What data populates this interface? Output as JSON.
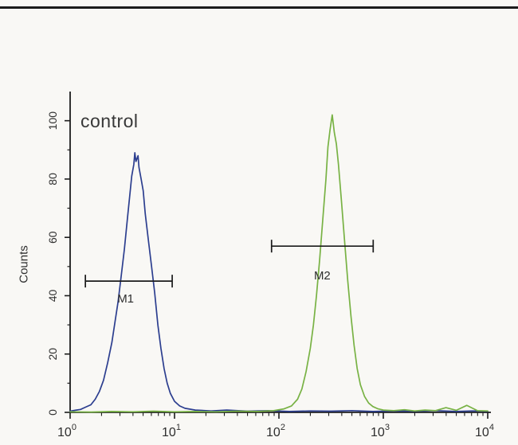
{
  "page": {
    "background": "#f9f8f5"
  },
  "chart_data": {
    "type": "line",
    "title": "control",
    "xlabel": "",
    "ylabel": "Counts",
    "x_scale": "log",
    "xlim": [
      1,
      10000
    ],
    "ylim": [
      0,
      110
    ],
    "x_tick_base": "10",
    "x_tick_exponents": [
      0,
      1,
      2,
      3,
      4
    ],
    "y_ticks": [
      0,
      20,
      40,
      60,
      80,
      100
    ],
    "y_minor_ticks": [
      10,
      30,
      50,
      70,
      90
    ],
    "grid": false,
    "legend": "none",
    "colors": {
      "axis": "#1c1c1c",
      "text": "#2e2e2e",
      "gate": "#1b1b1b"
    },
    "series": [
      {
        "name": "control-peak-blue",
        "color": "#2c3e8f",
        "points": [
          [
            1.0,
            0.4
          ],
          [
            1.12,
            0.7
          ],
          [
            1.26,
            1.0
          ],
          [
            1.41,
            1.8
          ],
          [
            1.58,
            2.6
          ],
          [
            1.74,
            4.5
          ],
          [
            1.91,
            7.2
          ],
          [
            2.09,
            11
          ],
          [
            2.29,
            17
          ],
          [
            2.51,
            24
          ],
          [
            2.69,
            31
          ],
          [
            2.88,
            38
          ],
          [
            3.09,
            47
          ],
          [
            3.31,
            56
          ],
          [
            3.55,
            67
          ],
          [
            3.72,
            74
          ],
          [
            3.89,
            81
          ],
          [
            4.07,
            85
          ],
          [
            4.17,
            89
          ],
          [
            4.27,
            86
          ],
          [
            4.47,
            88
          ],
          [
            4.57,
            84
          ],
          [
            4.79,
            80
          ],
          [
            5.01,
            76
          ],
          [
            5.25,
            68
          ],
          [
            5.62,
            59
          ],
          [
            6.03,
            50
          ],
          [
            6.46,
            41
          ],
          [
            6.92,
            30
          ],
          [
            7.41,
            22
          ],
          [
            7.94,
            15
          ],
          [
            8.51,
            10
          ],
          [
            9.12,
            6.5
          ],
          [
            10,
            3.8
          ],
          [
            11.2,
            2.2
          ],
          [
            12.6,
            1.4
          ],
          [
            15.8,
            0.8
          ],
          [
            22.4,
            0.5
          ],
          [
            31.6,
            0.8
          ],
          [
            50,
            0.4
          ],
          [
            79,
            0.6
          ],
          [
            126,
            0.3
          ],
          [
            200,
            0.5
          ],
          [
            316,
            0.4
          ],
          [
            501,
            0.6
          ],
          [
            794,
            0.3
          ],
          [
            1259,
            0.5
          ],
          [
            1995,
            0.4
          ],
          [
            3162,
            0.6
          ],
          [
            5012,
            0.3
          ],
          [
            7079,
            0.5
          ],
          [
            10000,
            0.4
          ]
        ]
      },
      {
        "name": "sample-peak-green",
        "color": "#78b244",
        "points": [
          [
            1,
            0.2
          ],
          [
            1.6,
            0.1
          ],
          [
            2.5,
            0.3
          ],
          [
            4,
            0.2
          ],
          [
            6.3,
            0.4
          ],
          [
            10,
            0.2
          ],
          [
            15.8,
            0.3
          ],
          [
            25,
            0.2
          ],
          [
            40,
            0.4
          ],
          [
            63,
            0.3
          ],
          [
            89,
            0.6
          ],
          [
            112,
            1.2
          ],
          [
            132,
            2.2
          ],
          [
            151,
            4.5
          ],
          [
            166,
            8
          ],
          [
            182,
            14
          ],
          [
            200,
            22
          ],
          [
            214,
            30
          ],
          [
            229,
            40
          ],
          [
            245,
            52
          ],
          [
            263,
            66
          ],
          [
            282,
            80
          ],
          [
            295,
            91
          ],
          [
            309,
            97
          ],
          [
            324,
            102
          ],
          [
            339,
            96
          ],
          [
            355,
            92
          ],
          [
            372,
            85
          ],
          [
            398,
            72
          ],
          [
            427,
            58
          ],
          [
            457,
            45
          ],
          [
            490,
            33
          ],
          [
            525,
            23
          ],
          [
            562,
            15
          ],
          [
            603,
            9.5
          ],
          [
            661,
            5.5
          ],
          [
            724,
            3.2
          ],
          [
            794,
            2.0
          ],
          [
            891,
            1.2
          ],
          [
            1000,
            0.8
          ],
          [
            1259,
            0.6
          ],
          [
            1585,
            0.9
          ],
          [
            1995,
            0.5
          ],
          [
            2512,
            0.8
          ],
          [
            3162,
            0.6
          ],
          [
            3981,
            1.6
          ],
          [
            5012,
            0.7
          ],
          [
            6310,
            2.4
          ],
          [
            7943,
            0.6
          ],
          [
            10000,
            0.5
          ]
        ]
      }
    ],
    "gates": [
      {
        "label": "M1",
        "y": 45,
        "x_from": 1.4,
        "x_to": 9.5,
        "label_x": 3.4,
        "label_y": 39
      },
      {
        "label": "M2",
        "y": 57,
        "x_from": 85.0,
        "x_to": 800.0,
        "label_x": 260,
        "label_y": 47
      }
    ]
  }
}
